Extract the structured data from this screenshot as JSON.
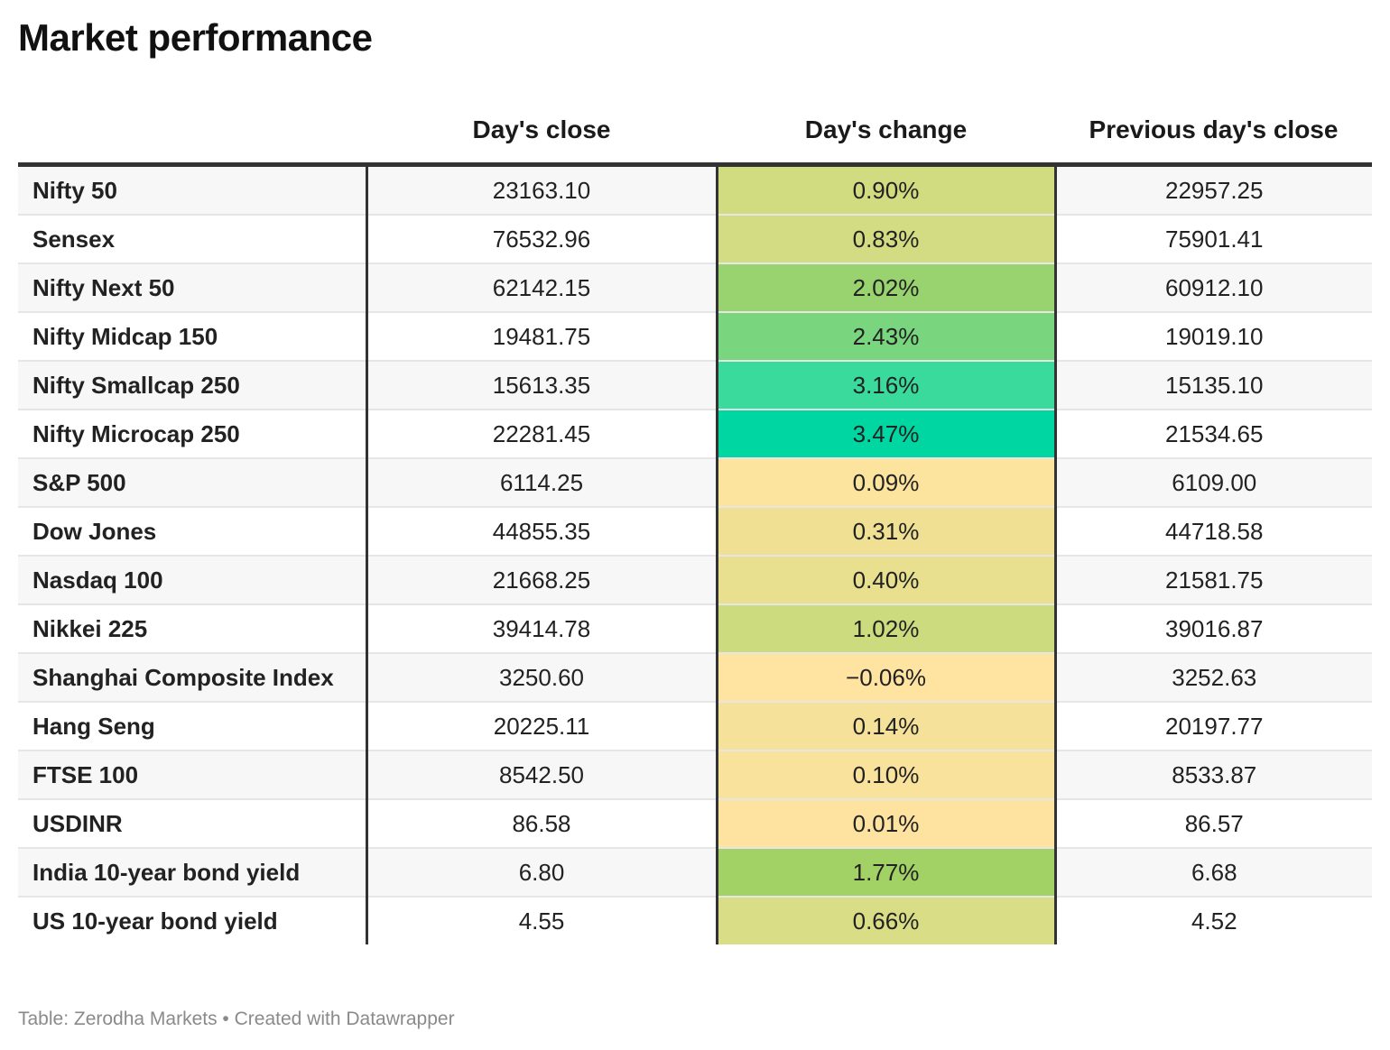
{
  "title": "Market performance",
  "source": "Table: Zerodha Markets • Created with Datawrapper",
  "chart_data": {
    "type": "table",
    "title": "Market performance",
    "columns": [
      "",
      "Day's close",
      "Day's change",
      "Previous day's close"
    ],
    "rows": [
      {
        "name": "Nifty 50",
        "close": "23163.10",
        "change": "0.90%",
        "prev": "22957.25",
        "change_value": 0.9,
        "color": "#d1dc80"
      },
      {
        "name": "Sensex",
        "close": "76532.96",
        "change": "0.83%",
        "prev": "75901.41",
        "change_value": 0.83,
        "color": "#d3dc83"
      },
      {
        "name": "Nifty Next 50",
        "close": "62142.15",
        "change": "2.02%",
        "prev": "60912.10",
        "change_value": 2.02,
        "color": "#98d36f"
      },
      {
        "name": "Nifty Midcap 150",
        "close": "19481.75",
        "change": "2.43%",
        "prev": "19019.10",
        "change_value": 2.43,
        "color": "#7ad57f"
      },
      {
        "name": "Nifty Smallcap 250",
        "close": "15613.35",
        "change": "3.16%",
        "prev": "15135.10",
        "change_value": 3.16,
        "color": "#3ad99c"
      },
      {
        "name": "Nifty Microcap 250",
        "close": "22281.45",
        "change": "3.47%",
        "prev": "21534.65",
        "change_value": 3.47,
        "color": "#00d6a1"
      },
      {
        "name": "S&P 500",
        "close": "6114.25",
        "change": "0.09%",
        "prev": "6109.00",
        "change_value": 0.09,
        "color": "#fce39e"
      },
      {
        "name": "Dow Jones",
        "close": "44855.35",
        "change": "0.31%",
        "prev": "44718.58",
        "change_value": 0.31,
        "color": "#efe094"
      },
      {
        "name": "Nasdaq 100",
        "close": "21668.25",
        "change": "0.40%",
        "prev": "21581.75",
        "change_value": 0.4,
        "color": "#e8df8f"
      },
      {
        "name": "Nikkei 225",
        "close": "39414.78",
        "change": "1.02%",
        "prev": "39016.87",
        "change_value": 1.02,
        "color": "#cbdb7e"
      },
      {
        "name": "Shanghai Composite Index",
        "close": "3250.60",
        "change": "−0.06%",
        "prev": "3252.63",
        "change_value": -0.06,
        "color": "#ffe3a1"
      },
      {
        "name": "Hang Seng",
        "close": "20225.11",
        "change": "0.14%",
        "prev": "20197.77",
        "change_value": 0.14,
        "color": "#f6e19a"
      },
      {
        "name": "FTSE 100",
        "close": "8542.50",
        "change": "0.10%",
        "prev": "8533.87",
        "change_value": 0.1,
        "color": "#f9e29c"
      },
      {
        "name": "USDINR",
        "close": "86.58",
        "change": "0.01%",
        "prev": "86.57",
        "change_value": 0.01,
        "color": "#fde39f"
      },
      {
        "name": "India 10-year bond yield",
        "close": "6.80",
        "change": "1.77%",
        "prev": "6.68",
        "change_value": 1.77,
        "color": "#a2d266"
      },
      {
        "name": "US 10-year bond yield",
        "close": "4.55",
        "change": "0.66%",
        "prev": "4.52",
        "change_value": 0.66,
        "color": "#d8dd86"
      }
    ]
  }
}
